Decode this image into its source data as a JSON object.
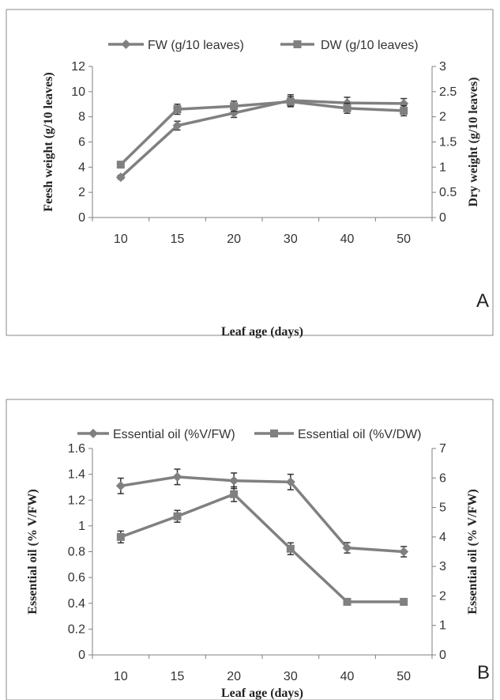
{
  "chart_data": [
    {
      "type": "line",
      "panel_label": "A",
      "categories": [
        "10",
        "15",
        "20",
        "30",
        "40",
        "50"
      ],
      "xlabel": "Leaf age (days)",
      "ylabel_left": "Feesh weight (g/10 leaves)",
      "ylabel_right": "Dry weight (g/10 leaves)",
      "ylim_left": [
        0,
        12
      ],
      "yticks_left": [
        "0",
        "2",
        "4",
        "6",
        "8",
        "10",
        "12"
      ],
      "ylim_right": [
        0,
        3
      ],
      "yticks_right": [
        "0",
        "0.5",
        "1",
        "1.5",
        "2",
        "2.5",
        "3"
      ],
      "legend_position": "top",
      "series": [
        {
          "name": "FW (g/10 leaves)",
          "axis": "left",
          "marker": "diamond",
          "values": [
            3.2,
            7.3,
            8.3,
            9.3,
            9.1,
            9.05
          ],
          "errors": [
            0.15,
            0.35,
            0.35,
            0.45,
            0.45,
            0.4
          ]
        },
        {
          "name": "DW (g/10 leaves)",
          "axis": "right",
          "marker": "square",
          "values": [
            1.05,
            2.15,
            2.21,
            2.3,
            2.17,
            2.12
          ],
          "errors": [
            0,
            0.1,
            0.1,
            0.1,
            0.1,
            0.1
          ]
        }
      ],
      "color": "#808080"
    },
    {
      "type": "line",
      "panel_label": "B",
      "categories": [
        "10",
        "15",
        "20",
        "30",
        "40",
        "50"
      ],
      "xlabel": "Leaf age (days)",
      "ylabel_left": "Essential oil (% V/FW)",
      "ylabel_right": "Essential oil (% V/FW)",
      "ylim_left": [
        0,
        1.6
      ],
      "yticks_left": [
        "0",
        "0.2",
        "0.4",
        "0.6",
        "0.8",
        "1",
        "1.2",
        "1.4",
        "1.6"
      ],
      "ylim_right": [
        0,
        7
      ],
      "yticks_right": [
        "0",
        "1",
        "2",
        "3",
        "4",
        "5",
        "6",
        "7"
      ],
      "legend_position": "top",
      "series": [
        {
          "name": "Essential oil (%V/FW)",
          "axis": "left",
          "marker": "diamond",
          "values": [
            1.31,
            1.38,
            1.35,
            1.34,
            0.83,
            0.8
          ],
          "errors": [
            0.06,
            0.06,
            0.06,
            0.06,
            0.04,
            0.04
          ]
        },
        {
          "name": "Essential oil (%V/DW)",
          "axis": "right",
          "marker": "square",
          "values": [
            4.0,
            4.7,
            5.45,
            3.6,
            1.8,
            1.8
          ],
          "errors": [
            0.2,
            0.2,
            0.25,
            0.2,
            0,
            0
          ]
        }
      ],
      "color": "#808080"
    }
  ]
}
